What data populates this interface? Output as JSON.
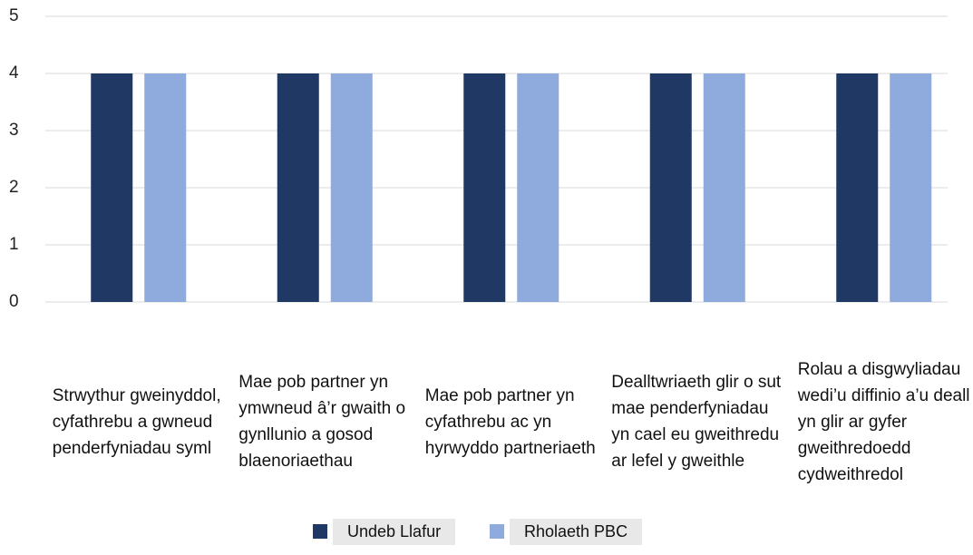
{
  "chart_data": {
    "type": "bar",
    "categories": [
      "Strwythur gweinyddol, cyfathrebu a gwneud penderfyniadau syml",
      "Mae pob partner yn ymwneud â’r gwaith o gynllunio a gosod blaenoriaethau",
      "Mae pob partner yn cyfathrebu ac yn hyrwyddo partneriaeth",
      "Dealltwriaeth glir o sut mae penderfyniadau yn cael eu gweithredu ar lefel y gweithle",
      "Rolau a disgwyliadau wedi’u diffinio a’u deall yn glir ar gyfer gweithredoedd cydweithredol"
    ],
    "series": [
      {
        "name": "Undeb Llafur",
        "color": "#1f3864",
        "values": [
          4,
          4,
          4,
          4,
          4
        ]
      },
      {
        "name": "Rholaeth PBC",
        "color": "#8faadc",
        "values": [
          4,
          4,
          4,
          4,
          4
        ]
      }
    ],
    "ylim": [
      0,
      5
    ],
    "yticks": [
      0,
      1,
      2,
      3,
      4,
      5
    ],
    "grid": true,
    "legend": "bottom"
  }
}
